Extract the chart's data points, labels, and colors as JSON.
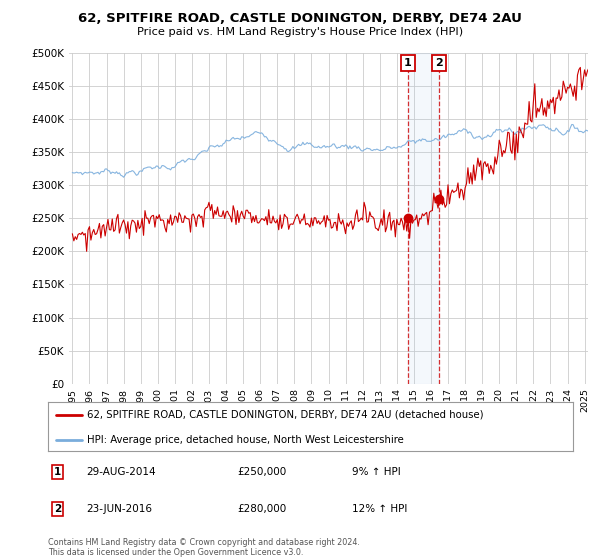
{
  "title": "62, SPITFIRE ROAD, CASTLE DONINGTON, DERBY, DE74 2AU",
  "subtitle": "Price paid vs. HM Land Registry's House Price Index (HPI)",
  "ylabel_ticks": [
    "£0",
    "£50K",
    "£100K",
    "£150K",
    "£200K",
    "£250K",
    "£300K",
    "£350K",
    "£400K",
    "£450K",
    "£500K"
  ],
  "ytick_values": [
    0,
    50000,
    100000,
    150000,
    200000,
    250000,
    300000,
    350000,
    400000,
    450000,
    500000
  ],
  "xlim_start": 1995.0,
  "xlim_end": 2025.2,
  "ylim": [
    0,
    500000
  ],
  "line1_color": "#cc0000",
  "line2_color": "#7aaddc",
  "line1_label": "62, SPITFIRE ROAD, CASTLE DONINGTON, DERBY, DE74 2AU (detached house)",
  "line2_label": "HPI: Average price, detached house, North West Leicestershire",
  "transaction1_date": 2014.66,
  "transaction1_price": 250000,
  "transaction1_label": "1",
  "transaction1_pct": "9% ↑ HPI",
  "transaction1_date_str": "29-AUG-2014",
  "transaction2_date": 2016.48,
  "transaction2_price": 280000,
  "transaction2_label": "2",
  "transaction2_pct": "12% ↑ HPI",
  "transaction2_date_str": "23-JUN-2016",
  "footer": "Contains HM Land Registry data © Crown copyright and database right 2024.\nThis data is licensed under the Open Government Licence v3.0.",
  "background_color": "#ffffff",
  "grid_color": "#cccccc"
}
